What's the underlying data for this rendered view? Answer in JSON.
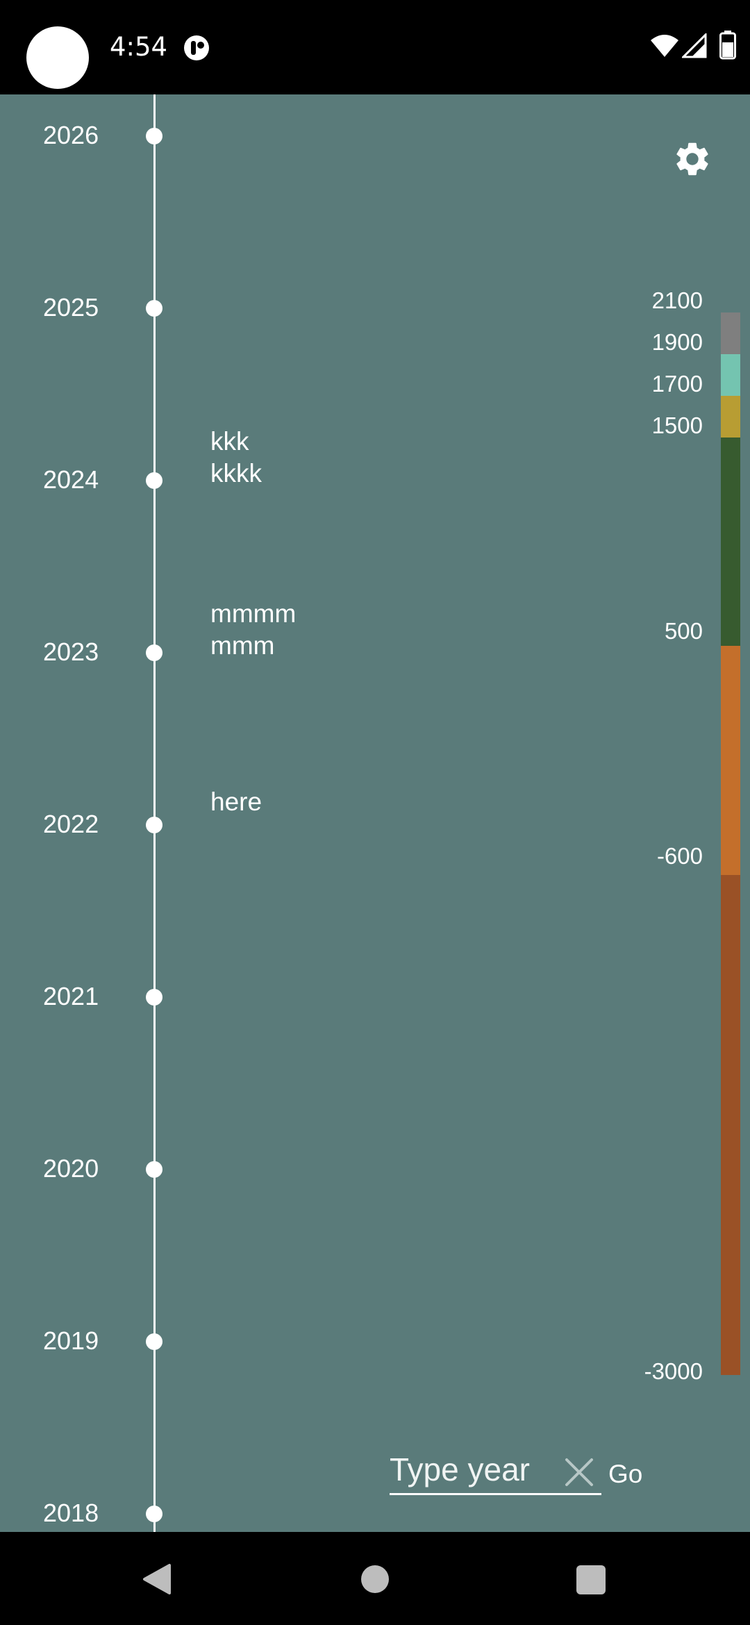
{
  "status_bar": {
    "time": "4:54",
    "icons": [
      "camera-cutout",
      "notification-icon",
      "wifi-icon",
      "signal-icon",
      "battery-icon"
    ]
  },
  "timeline": {
    "years": [
      {
        "year": "2026",
        "events": []
      },
      {
        "year": "2025",
        "events": []
      },
      {
        "year": "2024",
        "events": [
          "kkk",
          "kkkk"
        ]
      },
      {
        "year": "2023",
        "events": [
          "mmmm",
          "mmm"
        ]
      },
      {
        "year": "2022",
        "events": [
          "here"
        ]
      },
      {
        "year": "2021",
        "events": []
      },
      {
        "year": "2020",
        "events": []
      },
      {
        "year": "2019",
        "events": []
      },
      {
        "year": "2018",
        "events": []
      }
    ]
  },
  "settings": {
    "icon": "gear-icon"
  },
  "era_scale": {
    "labels": [
      "2100",
      "1900",
      "1700",
      "1500",
      "500",
      "-600",
      "-3000"
    ],
    "segments": [
      {
        "from": 1900,
        "to": 2100,
        "color": "#7f7f7f"
      },
      {
        "from": 1700,
        "to": 1900,
        "color": "#74c4b0"
      },
      {
        "from": 1500,
        "to": 1700,
        "color": "#b89d33"
      },
      {
        "from": 500,
        "to": 1500,
        "color": "#375b2f"
      },
      {
        "from": -600,
        "to": 500,
        "color": "#c46f2b"
      },
      {
        "from": -3000,
        "to": -600,
        "color": "#9a5126"
      }
    ]
  },
  "search": {
    "placeholder": "Type year",
    "go_label": "Go"
  },
  "colors": {
    "background": "#5a7b7a",
    "line": "#ffffff"
  }
}
